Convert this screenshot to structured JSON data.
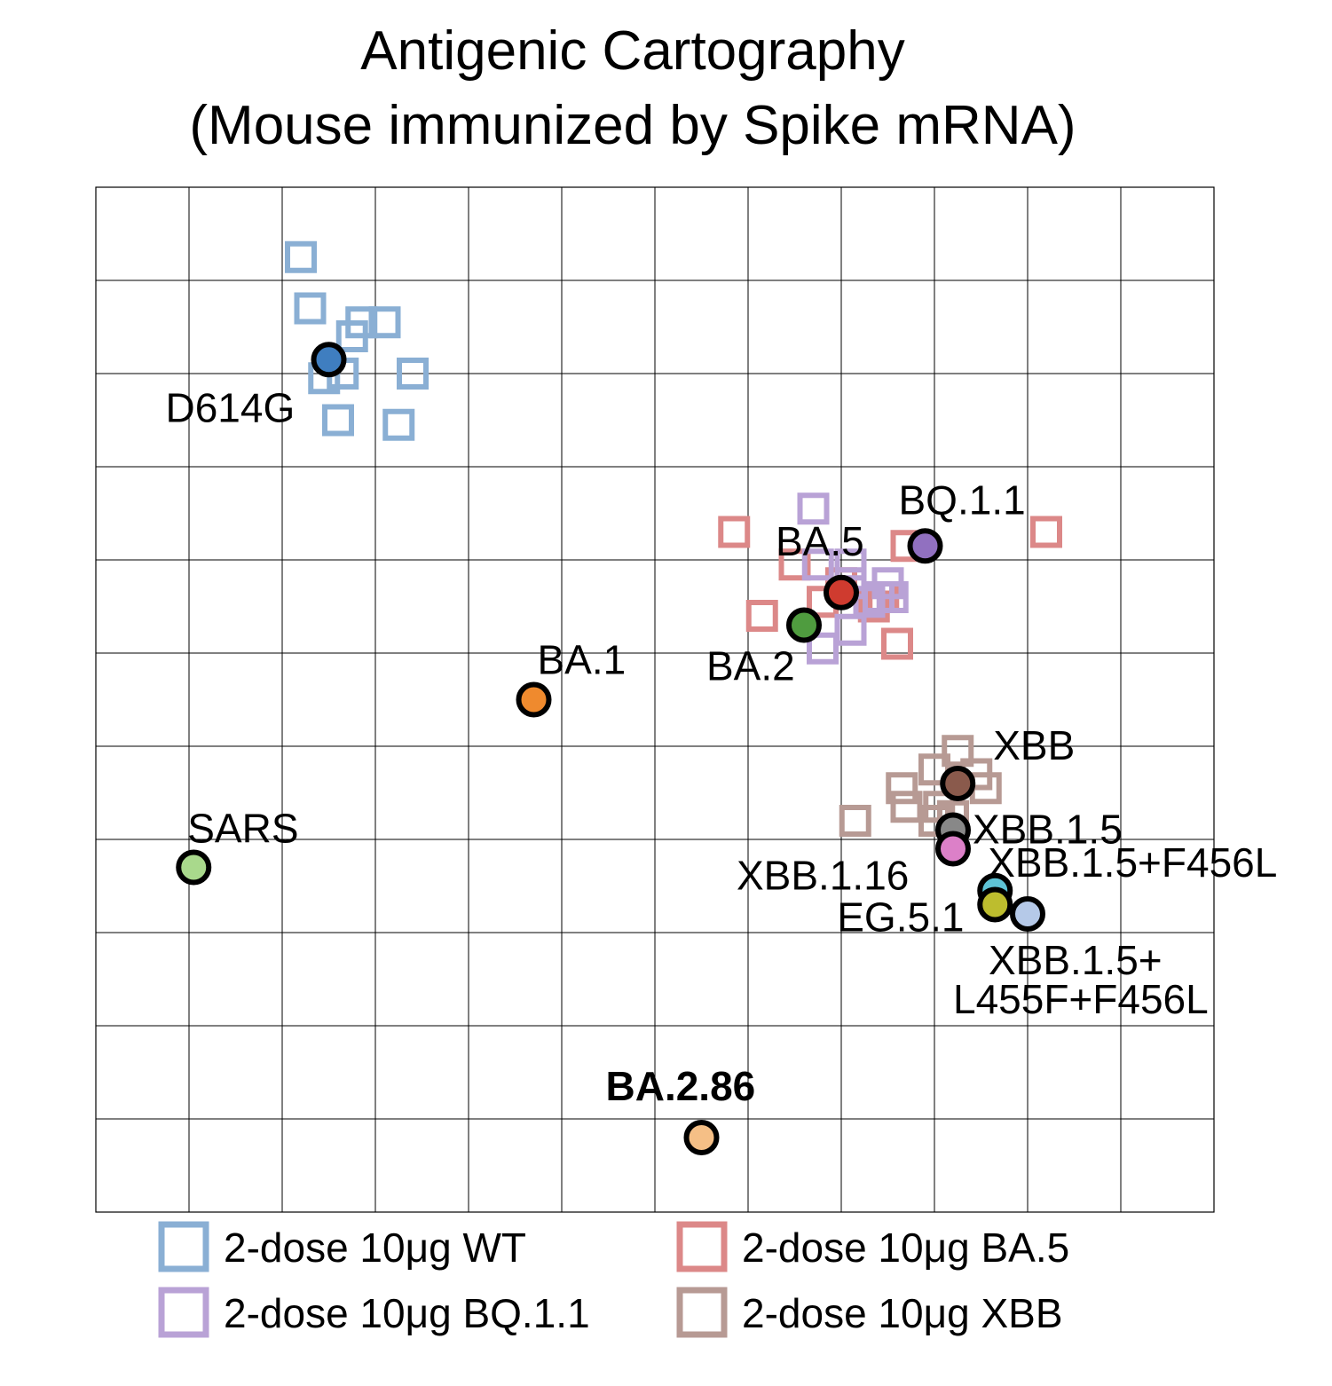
{
  "chart_data": {
    "type": "scatter",
    "title": "Antigenic Cartography",
    "subtitle": "(Mouse immunized by Spike mRNA)",
    "xlabel": "",
    "ylabel": "",
    "xlim": [
      0,
      12
    ],
    "ylim": [
      0,
      11
    ],
    "grid": true,
    "legend_position": "bottom",
    "antigens": [
      {
        "name": "D614G",
        "x": 2.5,
        "y": 9.15,
        "color": "#3f7ec0",
        "bold": false
      },
      {
        "name": "BA.1",
        "x": 4.7,
        "y": 5.5,
        "color": "#ef8a2e",
        "bold": false
      },
      {
        "name": "BA.2",
        "x": 7.6,
        "y": 6.3,
        "color": "#4f9c3f",
        "bold": false
      },
      {
        "name": "BA.5",
        "x": 8.0,
        "y": 6.65,
        "color": "#cf3b2f",
        "bold": false
      },
      {
        "name": "BQ.1.1",
        "x": 8.9,
        "y": 7.15,
        "color": "#9170c0",
        "bold": false
      },
      {
        "name": "XBB",
        "x": 9.25,
        "y": 4.6,
        "color": "#8a5a4c",
        "bold": false
      },
      {
        "name": "XBB.1.5",
        "x": 9.2,
        "y": 4.1,
        "color": "#888888",
        "bold": false
      },
      {
        "name": "XBB.1.16",
        "x": 9.2,
        "y": 3.9,
        "color": "#dc80c8",
        "bold": false
      },
      {
        "name": "XBB.1.5+F456L",
        "x": 9.65,
        "y": 3.45,
        "color": "#5ec3d6",
        "bold": false
      },
      {
        "name": "EG.5.1",
        "x": 9.65,
        "y": 3.3,
        "color": "#bdbd2e",
        "bold": false
      },
      {
        "name": "XBB.1.5+ L455F+F456L",
        "x": 10.0,
        "y": 3.2,
        "color": "#b5c9e8",
        "bold": false
      },
      {
        "name": "SARS",
        "x": 1.05,
        "y": 3.7,
        "color": "#a9d98c",
        "bold": false
      },
      {
        "name": "BA.2.86",
        "x": 6.5,
        "y": 0.8,
        "color": "#f5bf86",
        "bold": true
      }
    ],
    "series": [
      {
        "name": "2-dose 10μg WT",
        "color": "#8aafd4",
        "points": [
          [
            2.2,
            10.25
          ],
          [
            2.3,
            9.7
          ],
          [
            2.75,
            9.4
          ],
          [
            3.1,
            9.55
          ],
          [
            2.85,
            9.55
          ],
          [
            2.65,
            9.0
          ],
          [
            3.4,
            9.0
          ],
          [
            2.45,
            8.95
          ],
          [
            2.6,
            8.5
          ],
          [
            3.25,
            8.45
          ]
        ]
      },
      {
        "name": "2-dose 10μg BA.5",
        "color": "#dc8888",
        "points": [
          [
            6.85,
            7.3
          ],
          [
            7.5,
            6.95
          ],
          [
            7.15,
            6.4
          ],
          [
            7.8,
            6.55
          ],
          [
            8.0,
            6.75
          ],
          [
            8.35,
            6.5
          ],
          [
            8.7,
            7.15
          ],
          [
            8.6,
            6.1
          ],
          [
            10.2,
            7.3
          ],
          [
            8.45,
            6.6
          ]
        ]
      },
      {
        "name": "2-dose 10μg BQ.1.1",
        "color": "#b9a2d6",
        "points": [
          [
            7.7,
            7.55
          ],
          [
            7.75,
            6.95
          ],
          [
            8.1,
            6.95
          ],
          [
            8.1,
            6.75
          ],
          [
            8.5,
            6.75
          ],
          [
            8.55,
            6.6
          ],
          [
            8.4,
            6.6
          ],
          [
            8.1,
            6.25
          ],
          [
            7.8,
            6.05
          ],
          [
            8.3,
            6.55
          ]
        ]
      },
      {
        "name": "2-dose 10μg XBB",
        "color": "#b79a94",
        "points": [
          [
            9.25,
            4.95
          ],
          [
            9.0,
            4.75
          ],
          [
            9.45,
            4.7
          ],
          [
            9.55,
            4.55
          ],
          [
            8.65,
            4.55
          ],
          [
            9.05,
            4.35
          ],
          [
            8.7,
            4.35
          ],
          [
            8.15,
            4.2
          ],
          [
            9.2,
            4.25
          ],
          [
            9.0,
            4.2
          ]
        ]
      }
    ]
  }
}
